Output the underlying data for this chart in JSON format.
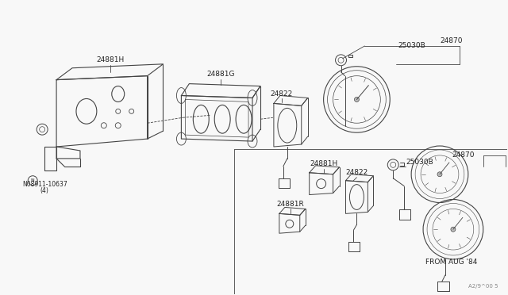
{
  "bg_color": "#f8f8f8",
  "line_color": "#444444",
  "text_color": "#222222",
  "fig_width": 6.4,
  "fig_height": 3.72,
  "watermark": "A2/9^00 5",
  "labels": {
    "24881H_top": "24881H",
    "24881G": "24881G",
    "24822_top": "24822",
    "25030B_top": "25030B",
    "24870_top": "24870",
    "N_bolt": "N08911-10637",
    "N_bolt2": "(4)",
    "24870_bot": "24870",
    "25030B_bot": "25030B",
    "24881H_bot": "24881H",
    "24822_bot": "24822",
    "24881R": "24881R",
    "from_aug": "FROM AUG '84"
  }
}
